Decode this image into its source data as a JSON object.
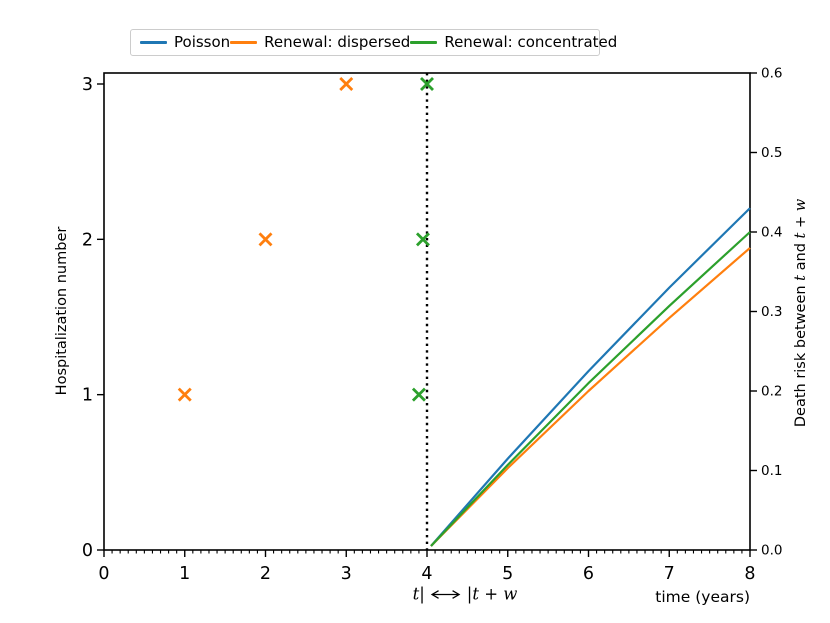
{
  "figure": {
    "background": "#ffffff"
  },
  "legend": {
    "items": [
      {
        "label": "Poisson",
        "color": "#1f77b4"
      },
      {
        "label": "Renewal: dispersed",
        "color": "#ff7f0e"
      },
      {
        "label": "Renewal: concentrated",
        "color": "#2ca02c"
      }
    ]
  },
  "labels": {
    "y_left": "Hospitalization number",
    "y_right_full": "Death risk between t and t + w",
    "y_right_parts": {
      "prefix": "Death risk between ",
      "t1": "t",
      "mid": " and ",
      "t2": "t",
      "plus": " + ",
      "w": "w"
    },
    "x_window": {
      "full": "t| ⟷ |t + w",
      "t_bar": "t|",
      "bar_t": "|t",
      "plus": " + ",
      "w": "w"
    },
    "x_axis": "time (years)"
  },
  "chart_data": {
    "type": "line+scatter",
    "title": "",
    "x_axis": {
      "label": "time (years)",
      "range": [
        0,
        8
      ],
      "tick_values": [
        0,
        1,
        2,
        3,
        4,
        5,
        6,
        7,
        8
      ],
      "tick_labels": [
        "0",
        "1",
        "2",
        "3",
        "4",
        "5",
        "6",
        "7",
        "8"
      ],
      "minor_tick_step": 0.1
    },
    "y_left_axis": {
      "label": "Hospitalization number",
      "range": [
        0,
        3
      ],
      "tick_values": [
        0,
        1,
        2,
        3
      ],
      "tick_labels": [
        "0",
        "1",
        "2",
        "3"
      ]
    },
    "y_right_axis": {
      "label": "Death risk between t and t + w",
      "range": [
        0,
        0.6
      ],
      "tick_values": [
        0,
        0.1,
        0.2,
        0.3,
        0.4,
        0.5,
        0.6
      ],
      "tick_labels": [
        "0.0",
        "0.1",
        "0.2",
        "0.3",
        "0.4",
        "0.5",
        "0.6"
      ]
    },
    "vline": {
      "x": 4,
      "style": "dotted",
      "color": "#000000",
      "annotation": "t| ⟷ |t + w"
    },
    "scatter_series": [
      {
        "name": "Renewal: dispersed hospitalizations",
        "color": "#ff7f0e",
        "marker": "x",
        "y_axis": "left",
        "points": [
          [
            1,
            1
          ],
          [
            2,
            2
          ],
          [
            3,
            3
          ]
        ]
      },
      {
        "name": "Renewal: concentrated hospitalizations",
        "color": "#2ca02c",
        "marker": "x",
        "y_axis": "left",
        "points": [
          [
            3.9,
            1
          ],
          [
            3.95,
            2
          ],
          [
            4.0,
            3
          ]
        ]
      }
    ],
    "line_series": [
      {
        "name": "Poisson",
        "color": "#1f77b4",
        "y_axis": "right",
        "points": [
          [
            4.05,
            0.005
          ],
          [
            5,
            0.115
          ],
          [
            6,
            0.225
          ],
          [
            7,
            0.33
          ],
          [
            8,
            0.43
          ]
        ]
      },
      {
        "name": "Renewal: dispersed",
        "color": "#ff7f0e",
        "y_axis": "right",
        "points": [
          [
            4.05,
            0.005
          ],
          [
            5,
            0.103
          ],
          [
            6,
            0.2
          ],
          [
            7,
            0.292
          ],
          [
            8,
            0.38
          ]
        ]
      },
      {
        "name": "Renewal: concentrated",
        "color": "#2ca02c",
        "y_axis": "right",
        "points": [
          [
            4.05,
            0.005
          ],
          [
            5,
            0.107
          ],
          [
            6,
            0.21
          ],
          [
            7,
            0.307
          ],
          [
            8,
            0.4
          ]
        ]
      }
    ]
  }
}
